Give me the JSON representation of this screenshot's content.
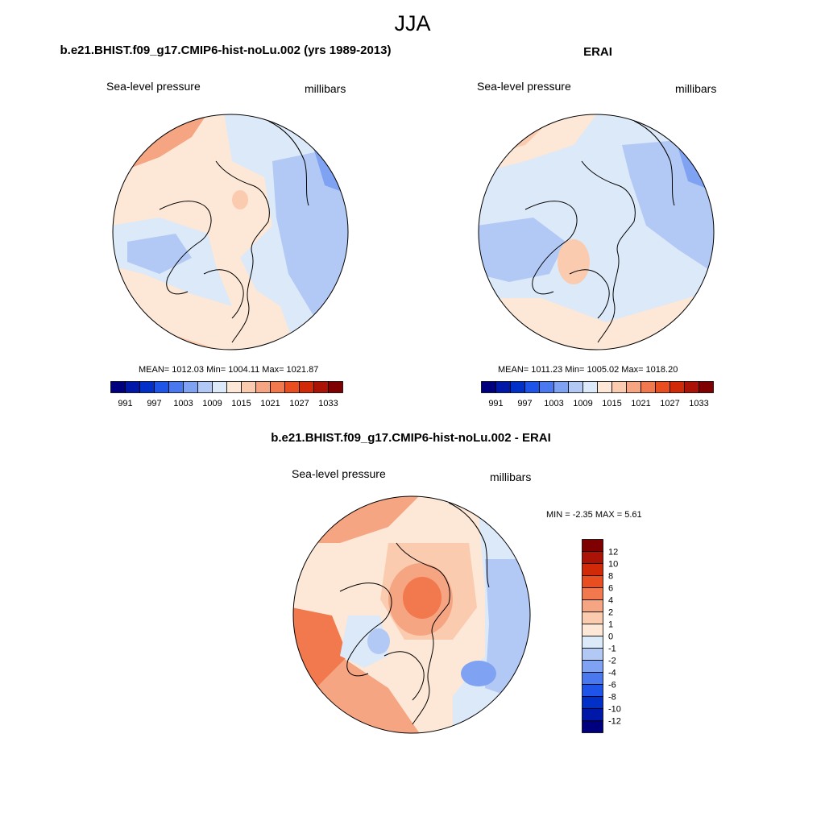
{
  "title": "JJA",
  "panels": {
    "model": {
      "title": "b.e21.BHIST.f09_g17.CMIP6-hist-noLu.002 (yrs 1989-2013)",
      "field_label": "Sea-level pressure",
      "units": "millibars",
      "stats": "MEAN= 1012.03  Min= 1004.11  Max= 1021.87"
    },
    "obs": {
      "title": "ERAI",
      "field_label": "Sea-level pressure",
      "units": "millibars",
      "stats": "MEAN= 1011.23  Min= 1005.02  Max= 1018.20"
    },
    "diff": {
      "title": "b.e21.BHIST.f09_g17.CMIP6-hist-noLu.002 - ERAI",
      "field_label": "Sea-level pressure",
      "units": "millibars",
      "stats": "MIN =  -2.35 MAX =   5.61"
    }
  },
  "colorbars": {
    "abs": {
      "colors": [
        "#00007f",
        "#0018a8",
        "#0030c8",
        "#1f54e8",
        "#4a78ee",
        "#7fa2f2",
        "#b3c9f5",
        "#dce9f9",
        "#fde7d6",
        "#fbcbb0",
        "#f6a582",
        "#f2784e",
        "#e94e20",
        "#d02a08",
        "#ab1306",
        "#7f0000"
      ],
      "tick_labels": [
        "991",
        "997",
        "1003",
        "1009",
        "1015",
        "1021",
        "1027",
        "1033"
      ]
    },
    "diff": {
      "colors": [
        "#00007f",
        "#0018a8",
        "#0030c8",
        "#1f54e8",
        "#4a78ee",
        "#7fa2f2",
        "#b3c9f5",
        "#dce9f9",
        "#fde7d6",
        "#fbcbb0",
        "#f6a582",
        "#f2784e",
        "#e94e20",
        "#d02a08",
        "#ab1306",
        "#7f0000"
      ],
      "tick_labels": [
        "-12",
        "-10",
        "-8",
        "-6",
        "-4",
        "-2",
        "-1",
        "0",
        "1",
        "2",
        "4",
        "6",
        "8",
        "10",
        "12"
      ]
    }
  }
}
